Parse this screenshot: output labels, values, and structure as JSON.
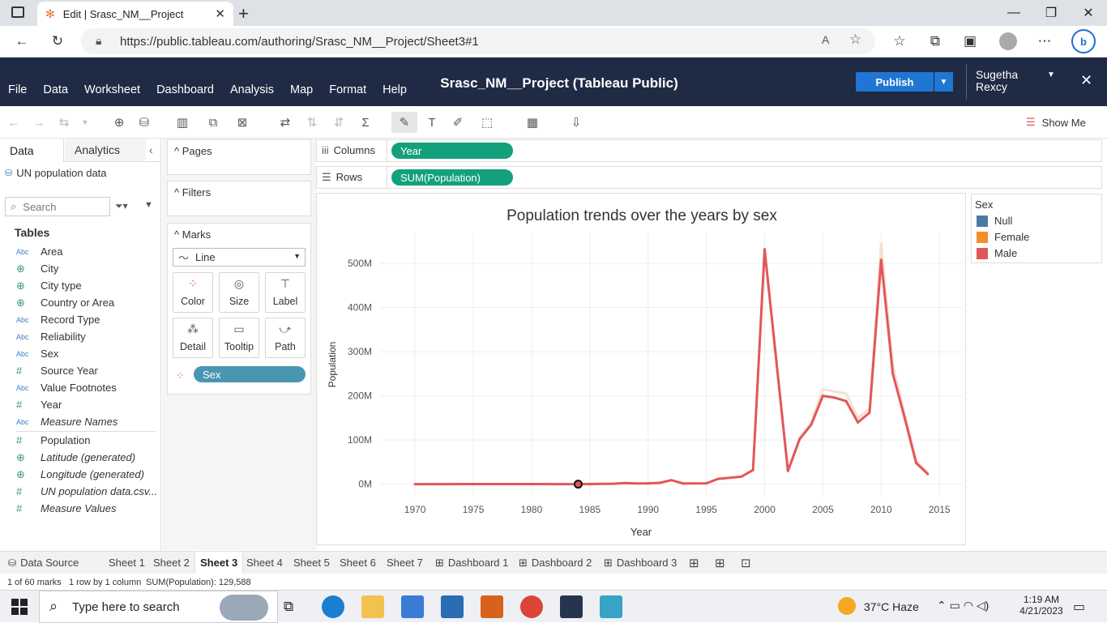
{
  "browser": {
    "tab_title": "Edit | Srasc_NM__Project",
    "url": "https://public.tableau.com/authoring/Srasc_NM__Project/Sheet3#1"
  },
  "app": {
    "menu": [
      "File",
      "Data",
      "Worksheet",
      "Dashboard",
      "Analysis",
      "Map",
      "Format",
      "Help"
    ],
    "title": "Srasc_NM__Project (Tableau Public)",
    "publish_label": "Publish",
    "user_first": "Sugetha",
    "user_last": "Rexcy",
    "show_me": "Show Me"
  },
  "data_pane": {
    "tab_data": "Data",
    "tab_analytics": "Analytics",
    "datasource": "UN population data",
    "search_placeholder": "Search",
    "tables_label": "Tables",
    "dimensions": [
      {
        "type": "Abc",
        "name": "Area"
      },
      {
        "type": "geo",
        "name": "City"
      },
      {
        "type": "geo",
        "name": "City type"
      },
      {
        "type": "geo",
        "name": "Country or Area"
      },
      {
        "type": "Abc",
        "name": "Record Type"
      },
      {
        "type": "Abc",
        "name": "Reliability"
      },
      {
        "type": "Abc",
        "name": "Sex"
      },
      {
        "type": "#",
        "name": "Source Year"
      },
      {
        "type": "Abc",
        "name": "Value Footnotes"
      },
      {
        "type": "#",
        "name": "Year"
      },
      {
        "type": "Abc",
        "name": "Measure Names"
      }
    ],
    "measures": [
      {
        "type": "#",
        "name": "Population"
      },
      {
        "type": "geo",
        "name": "Latitude (generated)"
      },
      {
        "type": "geo",
        "name": "Longitude (generated)"
      },
      {
        "type": "#",
        "name": "UN population data.csv..."
      },
      {
        "type": "#",
        "name": "Measure Values"
      }
    ]
  },
  "cards": {
    "pages": "Pages",
    "filters": "Filters",
    "marks": "Marks",
    "mark_type": "Line",
    "mark_buttons": [
      "Color",
      "Size",
      "Label",
      "Detail",
      "Tooltip",
      "Path"
    ],
    "color_pill": "Sex"
  },
  "shelves": {
    "columns_label": "Columns",
    "columns_pill": "Year",
    "rows_label": "Rows",
    "rows_pill": "SUM(Population)"
  },
  "legend": {
    "title": "Sex",
    "items": [
      {
        "label": "Null",
        "color": "#4e79a7"
      },
      {
        "label": "Female",
        "color": "#f28e2b"
      },
      {
        "label": "Male",
        "color": "#e15759"
      }
    ]
  },
  "chart_data": {
    "type": "line",
    "title": "Population trends over the years by sex",
    "xlabel": "Year",
    "ylabel": "Population",
    "xlim": [
      1967,
      2017
    ],
    "ylim": [
      -30000000,
      570000000
    ],
    "x_ticks": [
      1970,
      1975,
      1980,
      1985,
      1990,
      1995,
      2000,
      2005,
      2010,
      2015
    ],
    "y_ticks": [
      0,
      100000000,
      200000000,
      300000000,
      400000000,
      500000000
    ],
    "y_tick_labels": [
      "0M",
      "100M",
      "200M",
      "300M",
      "400M",
      "500M"
    ],
    "grid": true,
    "series": [
      {
        "name": "Female",
        "color": "#f8e0d2",
        "x": [
          2000,
          2002,
          2003,
          2004,
          2005,
          2007,
          2008,
          2009,
          2010,
          2011,
          2012,
          2013,
          2014
        ],
        "y": [
          525000000,
          30000000,
          105000000,
          140000000,
          215000000,
          205000000,
          150000000,
          170000000,
          545000000,
          270000000,
          160000000,
          55000000,
          25000000
        ]
      },
      {
        "name": "Male",
        "color": "#e15759",
        "x": [
          1970,
          1975,
          1980,
          1984,
          1987,
          1988,
          1989,
          1990,
          1991,
          1992,
          1993,
          1995,
          1996,
          1998,
          1999,
          2000,
          2002,
          2003,
          2004,
          2005,
          2006,
          2007,
          2008,
          2009,
          2010,
          2011,
          2012,
          2013,
          2014
        ],
        "y": [
          129588,
          300000,
          200000,
          129588,
          1000000,
          2500000,
          1500000,
          2000000,
          3000000,
          9000000,
          1500000,
          2000000,
          12000000,
          17000000,
          32000000,
          532000000,
          30000000,
          102000000,
          135000000,
          200000000,
          196000000,
          188000000,
          140000000,
          162000000,
          508000000,
          250000000,
          152000000,
          48000000,
          23000000
        ]
      }
    ],
    "highlight": {
      "x": 1984,
      "y": 129588
    }
  },
  "sheets": [
    "Data Source",
    "Sheet 1",
    "Sheet 2",
    "Sheet 3",
    "Sheet 4",
    "Sheet 5",
    "Sheet 6",
    "Sheet 7",
    "Dashboard 1",
    "Dashboard 2",
    "Dashboard 3"
  ],
  "active_sheet": "Sheet 3",
  "status": {
    "marks": "1 of 60 marks",
    "rows_cols": "1 row by 1 column",
    "sum": "SUM(Population): 129,588"
  },
  "taskbar": {
    "search_placeholder": "Type here to search",
    "weather": "37°C  Haze",
    "time": "1:19 AM",
    "date": "4/21/2023"
  }
}
